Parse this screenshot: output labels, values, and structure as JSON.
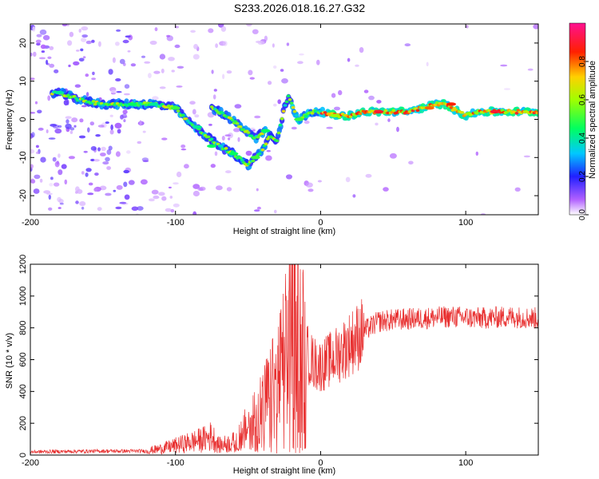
{
  "title": "S233.2026.018.16.27.G32",
  "chart_data": [
    {
      "type": "heatmap",
      "xlabel": "Height of straight line (km)",
      "ylabel": "Frequency (Hz)",
      "xlim": [
        -200,
        150
      ],
      "ylim": [
        -25,
        25
      ],
      "xticks": [
        -200,
        -100,
        0,
        100
      ],
      "yticks": [
        -20,
        -10,
        0,
        10,
        20
      ],
      "colorbar": {
        "label": "Normalized spectral amplitude",
        "range": [
          0.0,
          1.0
        ],
        "ticks": [
          "0.0",
          "0.2",
          "0.4",
          "0.6",
          "0.8"
        ]
      },
      "ridge": {
        "x": [
          -180,
          -165,
          -150,
          -130,
          -115,
          -100,
          -90,
          -80,
          -70,
          -60,
          -50,
          -40,
          -35,
          -30,
          -25,
          -22,
          -18,
          -15,
          -10,
          -5,
          0,
          10,
          20,
          30,
          40,
          50,
          60,
          70,
          80,
          85,
          90,
          100,
          110,
          120,
          130,
          140,
          150
        ],
        "y": [
          7,
          5,
          4,
          4,
          4,
          3,
          -1,
          -4,
          -7,
          -9,
          -12,
          -8,
          -4,
          -6,
          3,
          6,
          2,
          0,
          1,
          2,
          2,
          1,
          1,
          2,
          2,
          2,
          2,
          3,
          4,
          4,
          3,
          1,
          2,
          2,
          2,
          2,
          2
        ]
      },
      "ridge2": {
        "x": [
          -75,
          -65,
          -55,
          -45,
          -38
        ],
        "y": [
          3,
          1,
          -2,
          -5,
          -3
        ]
      },
      "peaks": [
        {
          "x": -180,
          "y": 7,
          "level": 0.4
        },
        {
          "x": -130,
          "y": 4,
          "level": 0.45
        },
        {
          "x": -115,
          "y": 4,
          "level": 0.4
        },
        {
          "x": -100,
          "y": 3,
          "level": 0.5
        },
        {
          "x": -85,
          "y": -2,
          "level": 0.4
        },
        {
          "x": -75,
          "y": -7,
          "level": 0.45
        },
        {
          "x": -60,
          "y": -9,
          "level": 0.45
        },
        {
          "x": -45,
          "y": -10,
          "level": 0.5
        },
        {
          "x": -38,
          "y": -3,
          "level": 0.45
        },
        {
          "x": -15,
          "y": 0,
          "level": 0.5
        },
        {
          "x": 10,
          "y": 1,
          "level": 0.6
        },
        {
          "x": 40,
          "y": 2,
          "level": 0.9
        },
        {
          "x": 75,
          "y": 3,
          "level": 0.8
        },
        {
          "x": 90,
          "y": 4,
          "level": 0.85
        },
        {
          "x": 120,
          "y": 2,
          "level": 0.9
        }
      ]
    },
    {
      "type": "line",
      "xlabel": "Height of straight line (km)",
      "ylabel": "SNR (10 * v/v)",
      "xlim": [
        -200,
        150
      ],
      "ylim": [
        0,
        1200
      ],
      "xticks": [
        -200,
        -100,
        0,
        100
      ],
      "yticks": [
        0,
        200,
        400,
        600,
        800,
        1000,
        1200
      ],
      "series": [
        {
          "name": "SNR",
          "color": "#e83030",
          "x": [
            -200,
            -150,
            -120,
            -110,
            -100,
            -90,
            -80,
            -75,
            -70,
            -60,
            -50,
            -45,
            -40,
            -35,
            -30,
            -25,
            -22,
            -19,
            -15,
            -10,
            -5,
            0,
            10,
            20,
            30,
            40,
            50,
            70,
            90,
            110,
            130,
            150
          ],
          "y": [
            20,
            25,
            25,
            40,
            60,
            80,
            100,
            120,
            60,
            80,
            180,
            250,
            300,
            380,
            450,
            600,
            700,
            1150,
            750,
            650,
            580,
            560,
            620,
            700,
            780,
            840,
            850,
            860,
            870,
            860,
            870,
            860
          ]
        }
      ]
    }
  ]
}
